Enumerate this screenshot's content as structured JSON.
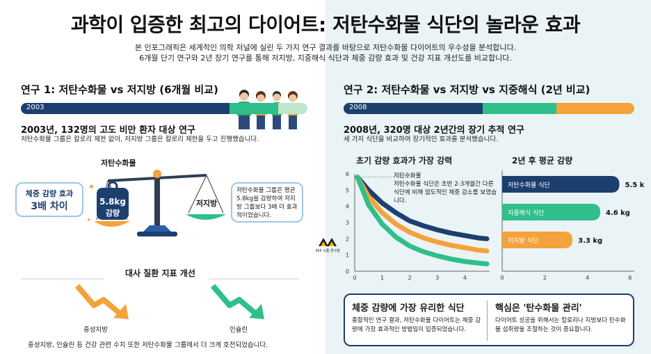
{
  "title": "과학이 입증한 최고의 다이어트: 저탄수화물 식단의 놀라운 효과",
  "subtitle_1": "본 인포그래픽은 세계적인 의학 저널에 실린 두 가지 연구 결과를 바탕으로 저탄수화물 다이어트의 우수성을 분석합니다.",
  "subtitle_2": "6개월 단기 연구와 2년 장기 연구를 통해 저지방, 지중해식 식단과 체중 감량 효과 및 건강 지표 개선도를 비교합니다.",
  "study1": {
    "heading": "연구 1: 저탄수화물 vs 저지방 (6개월 비교)",
    "year": "2003",
    "desc_title": "2003년, 132명의 고도 비만 환자 대상 연구",
    "desc": "저탄수화물 그룹은 칼로리 제한 없이, 저지방 그룹은 칼로리 제한을 두고 진행했습니다.",
    "scale_label_left": "저탄수화물",
    "weight_value": "5.8kg",
    "weight_unit": "감량",
    "scale_label_right": "저지방",
    "callout_left_1": "체중 감량 효과",
    "callout_left_2": "3배 차이",
    "callout_right": "저탄수화물 그룹은 평균 5.8kg을 감량하여 저지방 그룹보다 3배 더 효과적이었습니다.",
    "metabolic_title": "대사 질환 지표 개선",
    "metric_1": "중성지방",
    "metric_2": "인슐린",
    "metabolic_desc": "중성지방, 인슐린 등 건강 관련 수치 또한 저탄수화물 그룹에서 더 크게 호전되었습니다."
  },
  "logo_text": "365 소통 연구원",
  "study2": {
    "heading": "연구 2: 저탄수화물 vs 저지방 vs 지중해식 (2년 비교)",
    "year": "2008",
    "desc_title": "2008년, 320명 대상 2년간의 장기 추적 연구",
    "desc": "세 가지 식단을 비교하여 장기적인 효과를 분석했습니다.",
    "line_chart_title": "초기 감량 효과가 가장 강력",
    "line_note_title": "저탄수화물",
    "line_note": "저탄수화물 식단은 초반 2-3개월간 다른 식단에 비해 압도적인 체중 감소를 보였습니다.",
    "bar_chart_title": "2년 후 평균 감량",
    "box1_title": "체중 감량에 가장 유리한 식단",
    "box1_text": "종합적인 연구 결과, 저탄수화물 다이어트는 체중 감량에 가장 효과적인 방법임이 입증되었습니다.",
    "box2_title": "핵심은 '탄수화물 관리'",
    "box2_text": "다이어트 성공을 위해서는 칼로리나 지방보다 탄수화물 섭취량을 조절하는 것이 중요합니다."
  },
  "colors": {
    "navy": "#1c3f6e",
    "green": "#2ebf8a",
    "orange": "#f4a23c",
    "blue": "#2b5ea8"
  },
  "chart_data": [
    {
      "type": "line",
      "title": "초기 감량 효과가 가장 강력",
      "x_ticks": [
        "0",
        "1",
        "2",
        "3",
        "4"
      ],
      "y_ticks": [
        "0",
        "1",
        "2",
        "3",
        "4",
        "5",
        "6"
      ],
      "xlim": [
        0,
        4.9
      ],
      "ylim": [
        0,
        6
      ],
      "series": [
        {
          "name": "저탄수화물",
          "color": "#1c3f6e",
          "x": [
            0.1,
            0.5,
            1,
            1.5,
            2,
            2.5,
            3,
            3.5,
            4,
            4.5,
            4.8
          ],
          "y": [
            5.8,
            5.0,
            4.2,
            3.6,
            3.1,
            2.8,
            2.55,
            2.35,
            2.2,
            2.05,
            2.0
          ]
        },
        {
          "color": "#f4a23c",
          "x": [
            0.1,
            0.5,
            1,
            1.5,
            2,
            2.5,
            3,
            3.5,
            4,
            4.5,
            4.8
          ],
          "y": [
            5.8,
            4.6,
            3.6,
            2.9,
            2.4,
            2.05,
            1.8,
            1.6,
            1.45,
            1.3,
            1.25
          ]
        },
        {
          "color": "#2ebf8a",
          "x": [
            0.1,
            0.5,
            1,
            1.5,
            2,
            2.5,
            3,
            3.5,
            4,
            4.5,
            4.8
          ],
          "y": [
            5.8,
            4.1,
            2.9,
            2.1,
            1.55,
            1.2,
            0.95,
            0.75,
            0.6,
            0.5,
            0.45
          ]
        }
      ]
    },
    {
      "type": "bar",
      "title": "2년 후 평균 감량",
      "categories": [
        "저탄수화물 식단",
        "지중해식 식단",
        "저지방 식단"
      ],
      "values": [
        5.5,
        4.6,
        3.3
      ],
      "value_labels": [
        "5.5 kg",
        "4.6 kg",
        "3.3 kg"
      ],
      "colors": [
        "#1c3f6e",
        "#2ebf8a",
        "#f4a23c"
      ],
      "x_ticks": [
        "0",
        "2",
        "4",
        "6"
      ],
      "xlim": [
        0,
        6.2
      ]
    }
  ]
}
